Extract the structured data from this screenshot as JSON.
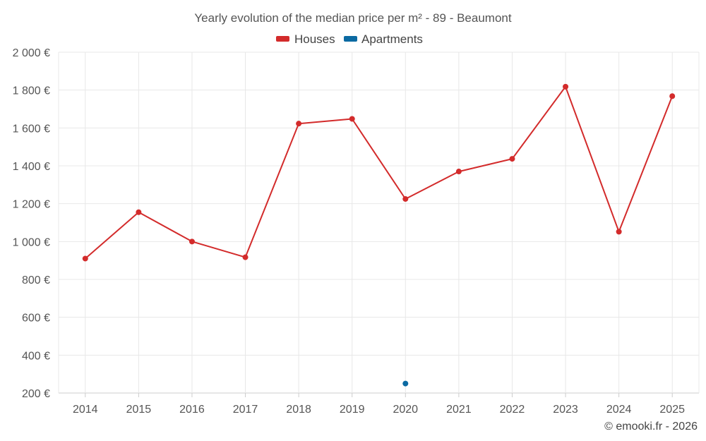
{
  "chart_data": {
    "type": "line",
    "title": "Yearly evolution of the median price per m² - 89 - Beaumont",
    "categories": [
      "2014",
      "2015",
      "2016",
      "2017",
      "2018",
      "2019",
      "2020",
      "2021",
      "2022",
      "2023",
      "2024",
      "2025"
    ],
    "series": [
      {
        "name": "Houses",
        "color": "#d32b2b",
        "values": [
          910,
          1155,
          1000,
          917,
          1623,
          1648,
          1225,
          1370,
          1437,
          1818,
          1052,
          1768
        ]
      },
      {
        "name": "Apartments",
        "color": "#0b6aa2",
        "values": [
          null,
          null,
          null,
          null,
          null,
          null,
          250,
          null,
          null,
          null,
          null,
          null
        ]
      }
    ],
    "y_ticks": [
      "200 €",
      "400 €",
      "600 €",
      "800 €",
      "1 000 €",
      "1 200 €",
      "1 400 €",
      "1 600 €",
      "1 800 €",
      "2 000 €"
    ],
    "y_tick_values": [
      200,
      400,
      600,
      800,
      1000,
      1200,
      1400,
      1600,
      1800,
      2000
    ],
    "ylim": [
      200,
      2000
    ],
    "xlabel": "",
    "ylabel": "",
    "legend_position": "top-center",
    "grid": true
  },
  "credit": "© emooki.fr - 2026"
}
